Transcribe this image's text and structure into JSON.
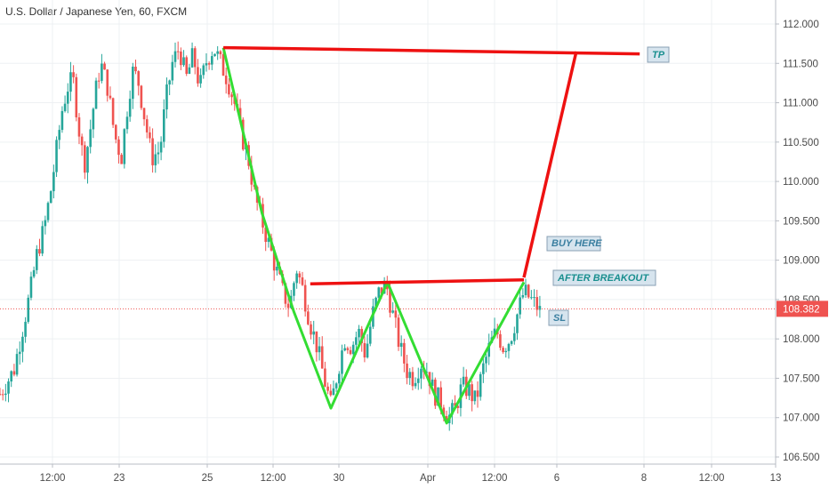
{
  "chart_data": {
    "type": "candlestick",
    "title": "U.S. Dollar / Japanese Yen, 60, FXCM",
    "x_labels": [
      "12:00",
      "23",
      "25",
      "12:00",
      "30",
      "Apr",
      "12:00",
      "6",
      "8",
      "12:00",
      "13"
    ],
    "y_ticks": [
      "112.000",
      "111.500",
      "111.000",
      "110.500",
      "110.000",
      "109.500",
      "109.000",
      "108.500",
      "108.000",
      "107.500",
      "107.000",
      "106.500"
    ],
    "y_tick_values": [
      112.0,
      111.5,
      111.0,
      110.5,
      110.0,
      109.5,
      109.0,
      108.5,
      108.0,
      107.5,
      107.0,
      106.5
    ],
    "ylim": [
      106.45,
      112.25
    ],
    "current_price": "108.382",
    "current_price_value": 108.382,
    "colors": {
      "up": "#26a69a",
      "down": "#ef5350",
      "pattern": "#33dd33",
      "levels": "#ee1111",
      "price_tag": "#ef5350",
      "price_line": "#ef5350"
    },
    "price_path": [
      [
        0.0,
        107.3
      ],
      [
        1.0,
        107.6
      ],
      [
        1.6,
        108.1
      ],
      [
        2.2,
        108.6
      ],
      [
        2.7,
        109.1
      ],
      [
        3.2,
        109.4
      ],
      [
        3.7,
        109.9
      ],
      [
        4.1,
        110.4
      ],
      [
        4.5,
        110.9
      ],
      [
        4.9,
        111.2
      ],
      [
        5.3,
        111.3
      ],
      [
        5.7,
        110.7
      ],
      [
        6.1,
        110.2
      ],
      [
        6.5,
        110.6
      ],
      [
        6.9,
        111.1
      ],
      [
        7.3,
        111.5
      ],
      [
        7.8,
        111.2
      ],
      [
        8.3,
        110.6
      ],
      [
        8.8,
        110.3
      ],
      [
        9.2,
        110.9
      ],
      [
        9.6,
        111.4
      ],
      [
        10.0,
        111.3
      ],
      [
        10.5,
        110.8
      ],
      [
        11.0,
        110.3
      ],
      [
        11.6,
        110.4
      ],
      [
        12.0,
        111.0
      ],
      [
        12.5,
        111.5
      ],
      [
        13.0,
        111.7
      ],
      [
        13.5,
        111.3
      ],
      [
        14.0,
        111.6
      ],
      [
        14.5,
        111.2
      ],
      [
        15.0,
        111.55
      ],
      [
        15.5,
        111.7
      ],
      [
        16.0,
        111.5
      ],
      [
        16.5,
        111.3
      ],
      [
        17.0,
        111.0
      ],
      [
        17.5,
        110.6
      ],
      [
        18.0,
        110.3
      ],
      [
        18.5,
        109.8
      ],
      [
        19.0,
        109.5
      ],
      [
        19.5,
        109.2
      ],
      [
        20.0,
        108.9
      ],
      [
        20.5,
        108.6
      ],
      [
        21.0,
        108.4
      ],
      [
        21.5,
        108.9
      ],
      [
        22.0,
        108.6
      ],
      [
        22.5,
        108.2
      ],
      [
        23.0,
        107.9
      ],
      [
        23.5,
        107.5
      ],
      [
        24.0,
        107.15
      ],
      [
        24.5,
        107.6
      ],
      [
        25.0,
        108.0
      ],
      [
        25.5,
        107.9
      ],
      [
        26.0,
        108.1
      ],
      [
        26.5,
        107.8
      ],
      [
        27.0,
        108.3
      ],
      [
        27.5,
        108.6
      ],
      [
        28.0,
        108.7
      ],
      [
        28.5,
        108.3
      ],
      [
        29.0,
        107.9
      ],
      [
        29.5,
        107.6
      ],
      [
        30.0,
        107.5
      ],
      [
        30.5,
        107.7
      ],
      [
        31.0,
        107.6
      ],
      [
        31.5,
        107.3
      ],
      [
        32.0,
        107.2
      ],
      [
        32.5,
        107.0
      ],
      [
        33.0,
        107.1
      ],
      [
        33.5,
        107.4
      ],
      [
        34.0,
        107.35
      ],
      [
        34.5,
        107.2
      ],
      [
        35.0,
        107.6
      ],
      [
        35.5,
        107.9
      ],
      [
        36.0,
        108.1
      ],
      [
        36.5,
        107.9
      ],
      [
        37.0,
        108.0
      ],
      [
        37.5,
        108.3
      ],
      [
        38.0,
        108.6
      ],
      [
        38.5,
        108.5
      ],
      [
        39.0,
        108.4
      ],
      [
        39.3,
        108.3
      ]
    ],
    "annotations": {
      "pattern": {
        "label": "",
        "points": [
          [
            16.2,
            111.7
          ],
          [
            19.0,
            109.6
          ],
          [
            21.3,
            108.35
          ],
          [
            24.0,
            107.12
          ],
          [
            28.1,
            108.72
          ],
          [
            32.4,
            106.93
          ],
          [
            38.0,
            108.72
          ]
        ]
      },
      "tp_line": {
        "points": [
          [
            16.2,
            111.7
          ],
          [
            46.4,
            111.62
          ]
        ]
      },
      "neckline": {
        "points": [
          [
            22.5,
            108.7
          ],
          [
            38.0,
            108.75
          ]
        ]
      },
      "target_line": {
        "points": [
          [
            38.0,
            108.78
          ],
          [
            41.8,
            111.65
          ]
        ]
      },
      "tp_label": "TP",
      "buy_label": "BUY HERE",
      "breakout_label": "AFTER BREAKOUT",
      "sl_label": "SL"
    },
    "legend": "none",
    "grid": true
  }
}
